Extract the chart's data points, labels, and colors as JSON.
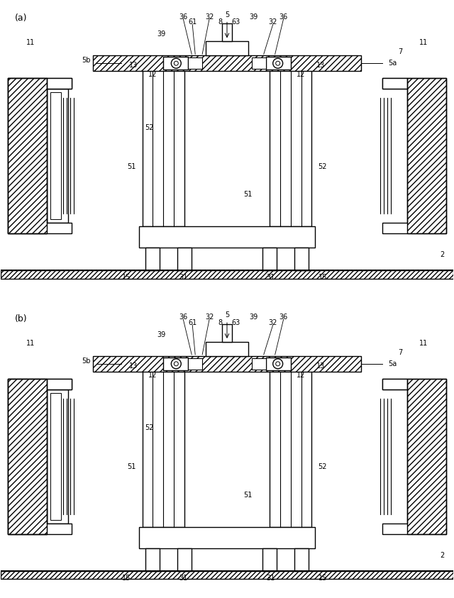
{
  "bg_color": "#ffffff",
  "line_color": "#000000",
  "hatch_color": "#000000",
  "fig_width": 6.4,
  "fig_height": 8.43,
  "label_a": "(a)",
  "label_b": "(b)",
  "labels": {
    "5": "5",
    "5a": "5a",
    "5b": "5b",
    "7": "7",
    "8": "8",
    "11": "11",
    "12": "12",
    "13": "13",
    "15": "15",
    "2": "2",
    "31": "31",
    "32": "32",
    "36": "36",
    "39": "39",
    "51": "51",
    "52": "52",
    "61": "61",
    "63": "63"
  }
}
